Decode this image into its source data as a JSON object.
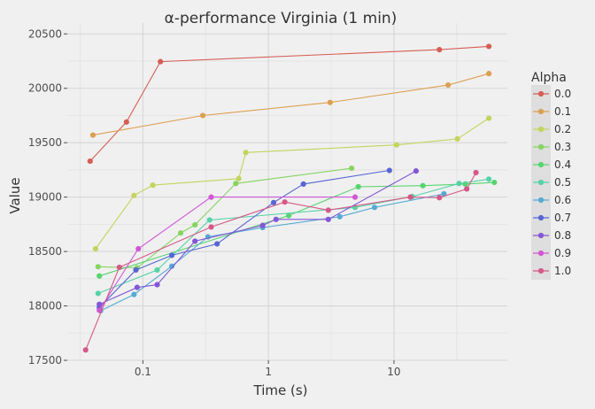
{
  "chart_data": {
    "type": "line",
    "title": "α-performance Virginia (1 min)",
    "xlabel": "Time (s)",
    "ylabel": "Value",
    "x_scale": "log",
    "xlim": [
      0.025,
      80
    ],
    "ylim": [
      17500,
      20600
    ],
    "x_ticks": [
      0.1,
      1,
      10
    ],
    "x_tick_labels": [
      "0.1",
      "1",
      "10"
    ],
    "y_ticks": [
      17500,
      18000,
      18500,
      19000,
      19500,
      20000,
      20500
    ],
    "y_tick_labels": [
      "17500",
      "18000",
      "18500",
      "19000",
      "19500",
      "20000",
      "20500"
    ],
    "grid": true,
    "legend": {
      "title": "Alpha",
      "position": "right"
    },
    "series": [
      {
        "name": "0.0",
        "color": "#d55e55",
        "x": [
          0.038,
          0.074,
          0.138,
          23,
          57
        ],
        "y": [
          19330,
          19690,
          20245,
          20355,
          20385
        ]
      },
      {
        "name": "0.1",
        "color": "#dc9f50",
        "x": [
          0.04,
          0.3,
          3.1,
          27,
          57
        ],
        "y": [
          19570,
          19750,
          19870,
          20030,
          20135
        ]
      },
      {
        "name": "0.2",
        "color": "#c3d45d",
        "x": [
          0.042,
          0.085,
          0.12,
          0.58,
          0.66,
          10.5,
          32,
          57
        ],
        "y": [
          18525,
          19015,
          19110,
          19170,
          19410,
          19480,
          19535,
          19725
        ]
      },
      {
        "name": "0.3",
        "color": "#86d460",
        "x": [
          0.044,
          0.09,
          0.2,
          0.26,
          0.55,
          4.6
        ],
        "y": [
          18360,
          18350,
          18670,
          18745,
          19125,
          19265
        ]
      },
      {
        "name": "0.4",
        "color": "#58d46f",
        "x": [
          0.045,
          1.45,
          5.2,
          17,
          37,
          63
        ],
        "y": [
          18275,
          18830,
          19095,
          19105,
          19120,
          19135
        ]
      },
      {
        "name": "0.5",
        "color": "#56d3a7",
        "x": [
          0.044,
          0.13,
          0.34,
          4.9,
          14,
          33,
          57
        ],
        "y": [
          18115,
          18330,
          18790,
          18905,
          19005,
          19125,
          19165
        ]
      },
      {
        "name": "0.6",
        "color": "#56aad3",
        "x": [
          0.046,
          0.085,
          0.17,
          0.33,
          0.9,
          3.7,
          7,
          25
        ],
        "y": [
          17955,
          18105,
          18365,
          18635,
          18720,
          18820,
          18905,
          19030
        ]
      },
      {
        "name": "0.7",
        "color": "#5766d4",
        "x": [
          0.045,
          0.088,
          0.17,
          0.39,
          1.1,
          1.9,
          9.2
        ],
        "y": [
          17985,
          18330,
          18465,
          18570,
          18950,
          19120,
          19245
        ]
      },
      {
        "name": "0.8",
        "color": "#8357d6",
        "x": [
          0.045,
          0.09,
          0.13,
          0.26,
          0.9,
          1.15,
          3,
          15
        ],
        "y": [
          18015,
          18170,
          18195,
          18595,
          18740,
          18795,
          18795,
          19240
        ]
      },
      {
        "name": "0.9",
        "color": "#d057d6",
        "x": [
          0.045,
          0.092,
          0.35,
          4.9
        ],
        "y": [
          17960,
          18525,
          19000,
          19000
        ]
      },
      {
        "name": "1.0",
        "color": "#d55888",
        "x": [
          0.035,
          0.065,
          0.35,
          1.35,
          3,
          13.5,
          23,
          38,
          45
        ],
        "y": [
          17595,
          18355,
          18725,
          18955,
          18880,
          19000,
          18995,
          19075,
          19225
        ]
      }
    ]
  }
}
